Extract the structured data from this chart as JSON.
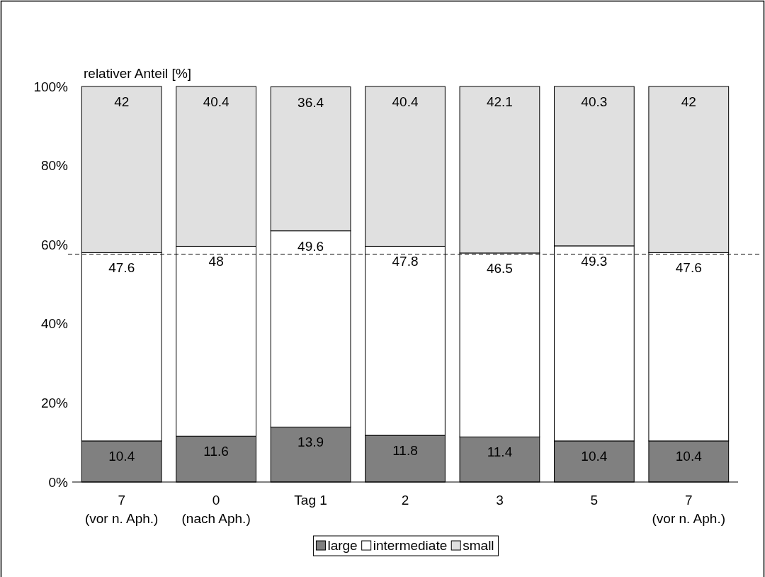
{
  "chart_data": {
    "type": "bar",
    "stacked": true,
    "ylabel": "relativer Anteil [%]",
    "categories": [
      "7\n(vor n. Aph.)",
      "0\n(nach Aph.)",
      "Tag 1",
      "2",
      "3",
      "5",
      "7\n(vor n. Aph.)"
    ],
    "series": [
      {
        "name": "large",
        "color": "#808080",
        "values": [
          10.4,
          11.6,
          13.9,
          11.8,
          11.4,
          10.4,
          10.4
        ]
      },
      {
        "name": "intermediate",
        "color": "#ffffff",
        "values": [
          47.6,
          48,
          49.6,
          47.8,
          46.5,
          49.3,
          47.6
        ]
      },
      {
        "name": "small",
        "color": "#e0e0e0",
        "values": [
          42,
          40.4,
          36.4,
          40.4,
          42.1,
          40.3,
          42
        ]
      }
    ],
    "ylim": [
      0,
      100
    ],
    "yticks": [
      {
        "value": 0,
        "label": "0%"
      },
      {
        "value": 20,
        "label": "20%"
      },
      {
        "value": 40,
        "label": "40%"
      },
      {
        "value": 60,
        "label": "60%"
      },
      {
        "value": 80,
        "label": "80%"
      },
      {
        "value": 100,
        "label": "100%"
      }
    ],
    "data_labels": true,
    "legend": "bottom",
    "grid": false,
    "ref_lines": [
      {
        "axis": "y",
        "value": 57.6,
        "line_style": "dashed"
      }
    ]
  }
}
